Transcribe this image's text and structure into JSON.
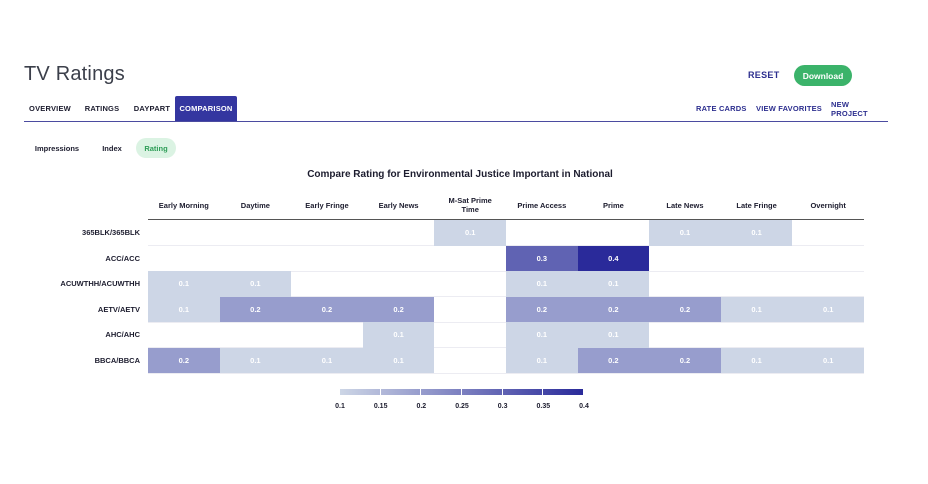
{
  "header": {
    "title": "TV Ratings",
    "reset_label": "RESET",
    "download_label": "Download"
  },
  "nav": {
    "tabs": [
      "OVERVIEW",
      "RATINGS",
      "DAYPART",
      "COMPARISON"
    ],
    "active_tab": "COMPARISON",
    "right_links": [
      "RATE CARDS",
      "VIEW FAVORITES",
      "NEW PROJECT"
    ]
  },
  "metrics": {
    "options": [
      "Impressions",
      "Index",
      "Rating"
    ],
    "active": "Rating"
  },
  "colors": {
    "brand": "#3436a0",
    "accent_green": "#3bb36a",
    "scale_min": "#cdd6e6",
    "scale_max": "#2a2a9a"
  },
  "chart_data": {
    "type": "heatmap",
    "title": "Compare Rating for Environmental Justice Important in National",
    "columns": [
      "Early Morning",
      "Daytime",
      "Early Fringe",
      "Early News",
      "M-Sat Prime Time",
      "Prime Access",
      "Prime",
      "Late News",
      "Late Fringe",
      "Overnight"
    ],
    "rows": [
      {
        "label": "365BLK/365BLK",
        "values": [
          null,
          null,
          null,
          null,
          0.1,
          null,
          null,
          0.1,
          0.1,
          null
        ]
      },
      {
        "label": "ACC/ACC",
        "values": [
          null,
          null,
          null,
          null,
          null,
          0.3,
          0.4,
          null,
          null,
          null
        ]
      },
      {
        "label": "ACUWTHH/ACUWTHH",
        "values": [
          0.1,
          0.1,
          null,
          null,
          null,
          0.1,
          0.1,
          null,
          null,
          null
        ]
      },
      {
        "label": "AETV/AETV",
        "values": [
          0.1,
          0.2,
          0.2,
          0.2,
          null,
          0.2,
          0.2,
          0.2,
          0.1,
          0.1
        ]
      },
      {
        "label": "AHC/AHC",
        "values": [
          null,
          null,
          null,
          0.1,
          null,
          0.1,
          0.1,
          null,
          null,
          null
        ]
      },
      {
        "label": "BBCA/BBCA",
        "values": [
          0.2,
          0.1,
          0.1,
          0.1,
          null,
          0.1,
          0.2,
          0.2,
          0.1,
          0.1
        ]
      }
    ],
    "legend": {
      "min": 0.1,
      "max": 0.4,
      "ticks": [
        "0.1",
        "0.15",
        "0.2",
        "0.25",
        "0.3",
        "0.35",
        "0.4"
      ]
    }
  }
}
